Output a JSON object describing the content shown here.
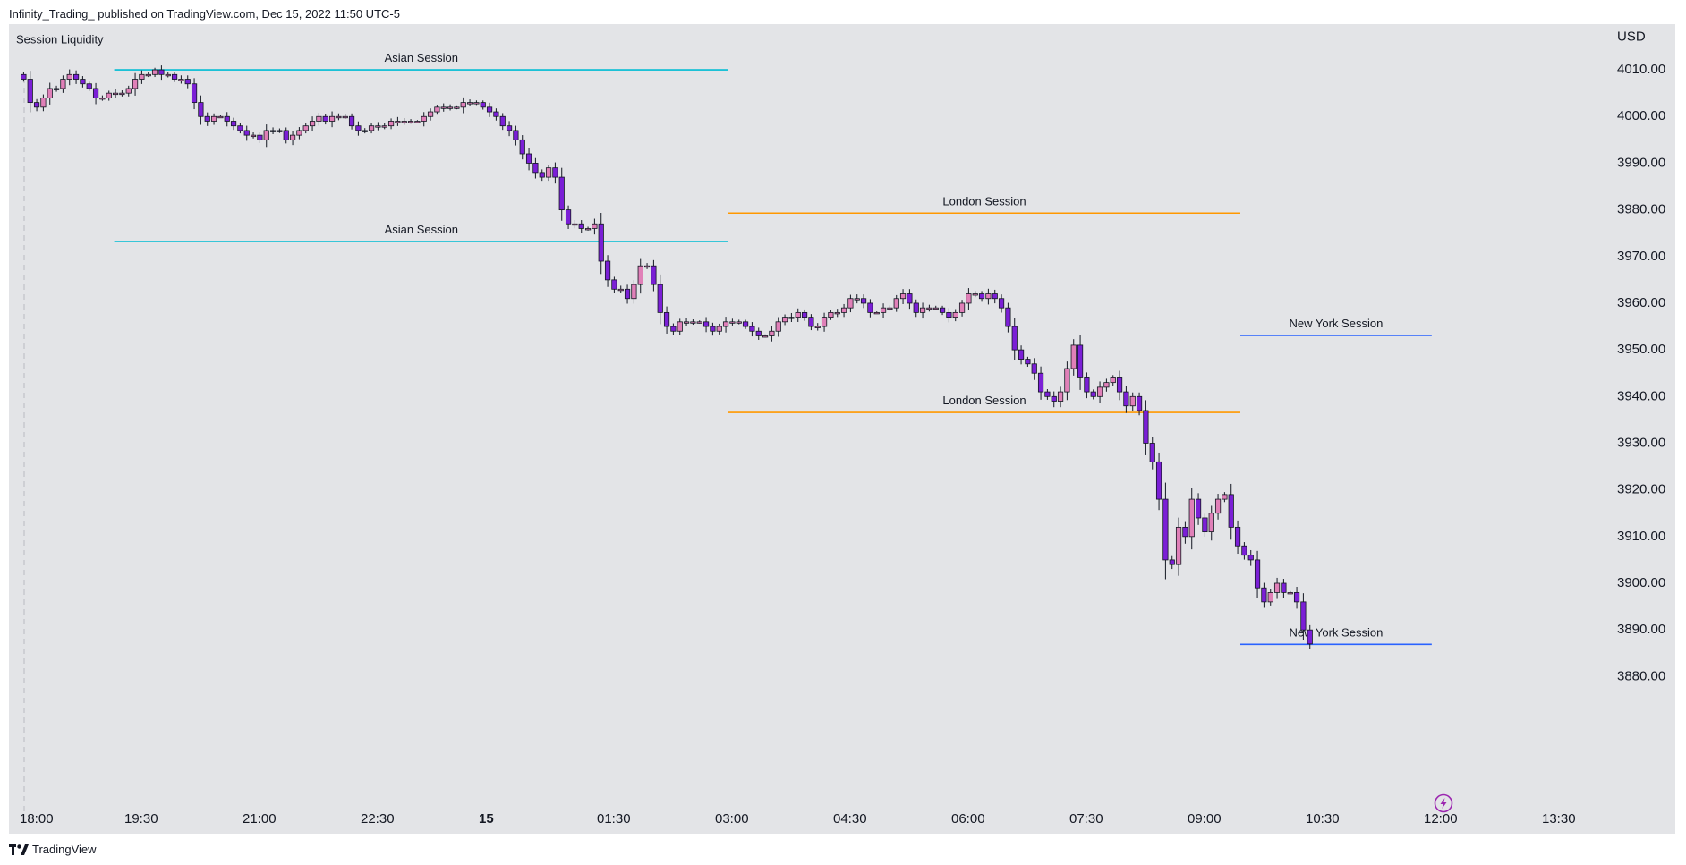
{
  "header": {
    "published_text": "Infinity_Trading_ published on TradingView.com, Dec 15, 2022 11:50 UTC-5"
  },
  "footer": {
    "brand": "TradingView"
  },
  "chart_data": {
    "type": "candlestick",
    "indicator_title": "Session Liquidity",
    "currency": "USD",
    "y_axis": {
      "range": [
        3877,
        4015
      ],
      "ticks": [
        4010,
        4000,
        3990,
        3980,
        3970,
        3960,
        3950,
        3940,
        3930,
        3920,
        3910,
        3900,
        3890,
        3880
      ],
      "tick_labels": [
        "4010.00",
        "4000.00",
        "3990.00",
        "3980.00",
        "3970.00",
        "3960.00",
        "3950.00",
        "3940.00",
        "3930.00",
        "3920.00",
        "3910.00",
        "3900.00",
        "3890.00",
        "3880.00"
      ]
    },
    "x_axis": {
      "labels": [
        {
          "label": "18:00",
          "hours": 0,
          "bold": false
        },
        {
          "label": "19:30",
          "hours": 1.5,
          "bold": false
        },
        {
          "label": "21:00",
          "hours": 3,
          "bold": false
        },
        {
          "label": "22:30",
          "hours": 4.5,
          "bold": false
        },
        {
          "label": "15",
          "hours": 6,
          "bold": true
        },
        {
          "label": "01:30",
          "hours": 7.5,
          "bold": false
        },
        {
          "label": "03:00",
          "hours": 9,
          "bold": false
        },
        {
          "label": "04:30",
          "hours": 10.5,
          "bold": false
        },
        {
          "label": "06:00",
          "hours": 12,
          "bold": false
        },
        {
          "label": "07:30",
          "hours": 13.5,
          "bold": false
        },
        {
          "label": "09:00",
          "hours": 15,
          "bold": false
        },
        {
          "label": "10:30",
          "hours": 16.5,
          "bold": false
        },
        {
          "label": "12:00",
          "hours": 18,
          "bold": false
        },
        {
          "label": "13:30",
          "hours": 19.5,
          "bold": false
        }
      ]
    },
    "sessions": [
      {
        "name": "Asian Session",
        "level": "high",
        "price": 4010.0,
        "start_hours": 1.2,
        "end_hours": 9.0,
        "color": "#00bcd4"
      },
      {
        "name": "Asian Session",
        "level": "low",
        "price": 3973.2,
        "start_hours": 1.2,
        "end_hours": 9.0,
        "color": "#00bcd4"
      },
      {
        "name": "London Session",
        "level": "high",
        "price": 3979.3,
        "start_hours": 9.0,
        "end_hours": 15.5,
        "color": "#ff9800"
      },
      {
        "name": "London Session",
        "level": "low",
        "price": 3936.6,
        "start_hours": 9.0,
        "end_hours": 15.5,
        "color": "#ff9800"
      },
      {
        "name": "New York Session",
        "level": "high",
        "price": 3953.1,
        "start_hours": 15.5,
        "end_hours": 17.93,
        "color": "#2962ff"
      },
      {
        "name": "New York Session",
        "level": "low",
        "price": 3886.9,
        "start_hours": 15.5,
        "end_hours": 17.93,
        "color": "#2962ff"
      }
    ],
    "colors": {
      "up": "#e080b8",
      "down": "#7b1fd6",
      "wick": "#131722",
      "background": "#e3e4e7"
    },
    "candle_interval_minutes": 5,
    "candle_closes": [
      4008,
      4003,
      4002,
      4004,
      4006,
      4006,
      4008,
      4009,
      4008,
      4007,
      4006,
      4004,
      4004,
      4005,
      4005,
      4005,
      4006,
      4008,
      4009,
      4009,
      4010,
      4009,
      4009,
      4008,
      4008,
      4007,
      4003,
      4000,
      3999,
      4000,
      4000,
      3999,
      3998,
      3997,
      3996,
      3996,
      3995,
      3997,
      3997,
      3997,
      3995,
      3996,
      3997,
      3998,
      3999,
      4000,
      3999,
      4000,
      4000,
      4000,
      3998,
      3997,
      3997,
      3998,
      3998,
      3998,
      3999,
      3999,
      3999,
      3999,
      3999,
      4000,
      4001,
      4002,
      4002,
      4002,
      4002,
      4003,
      4003,
      4003,
      4002,
      4001,
      4000,
      3998,
      3997,
      3995,
      3992,
      3990,
      3988,
      3987,
      3989,
      3987,
      3980,
      3977,
      3977,
      3976,
      3976,
      3977,
      3969,
      3965,
      3963,
      3963,
      3961,
      3964,
      3968,
      3968,
      3964,
      3958,
      3955,
      3954,
      3956,
      3956,
      3956,
      3956,
      3955,
      3954,
      3955,
      3956,
      3956,
      3956,
      3955,
      3954,
      3953,
      3953,
      3954,
      3956,
      3957,
      3957,
      3958,
      3957,
      3955,
      3955,
      3957,
      3958,
      3958,
      3959,
      3961,
      3961,
      3960,
      3958,
      3958,
      3959,
      3959,
      3961,
      3962,
      3960,
      3958,
      3959,
      3959,
      3959,
      3958,
      3957,
      3958,
      3960,
      3962,
      3962,
      3961,
      3962,
      3961,
      3959,
      3955,
      3950,
      3948,
      3947,
      3945,
      3941,
      3940,
      3939,
      3941,
      3946,
      3951,
      3944,
      3941,
      3940,
      3942,
      3943,
      3944,
      3941,
      3938,
      3940,
      3937,
      3930,
      3926,
      3918,
      3905,
      3904,
      3912,
      3910,
      3918,
      3914,
      3911,
      3915,
      3918,
      3919,
      3912,
      3908,
      3906,
      3905,
      3899,
      3896,
      3898,
      3900,
      3898,
      3898,
      3896,
      3890,
      3887
    ]
  }
}
